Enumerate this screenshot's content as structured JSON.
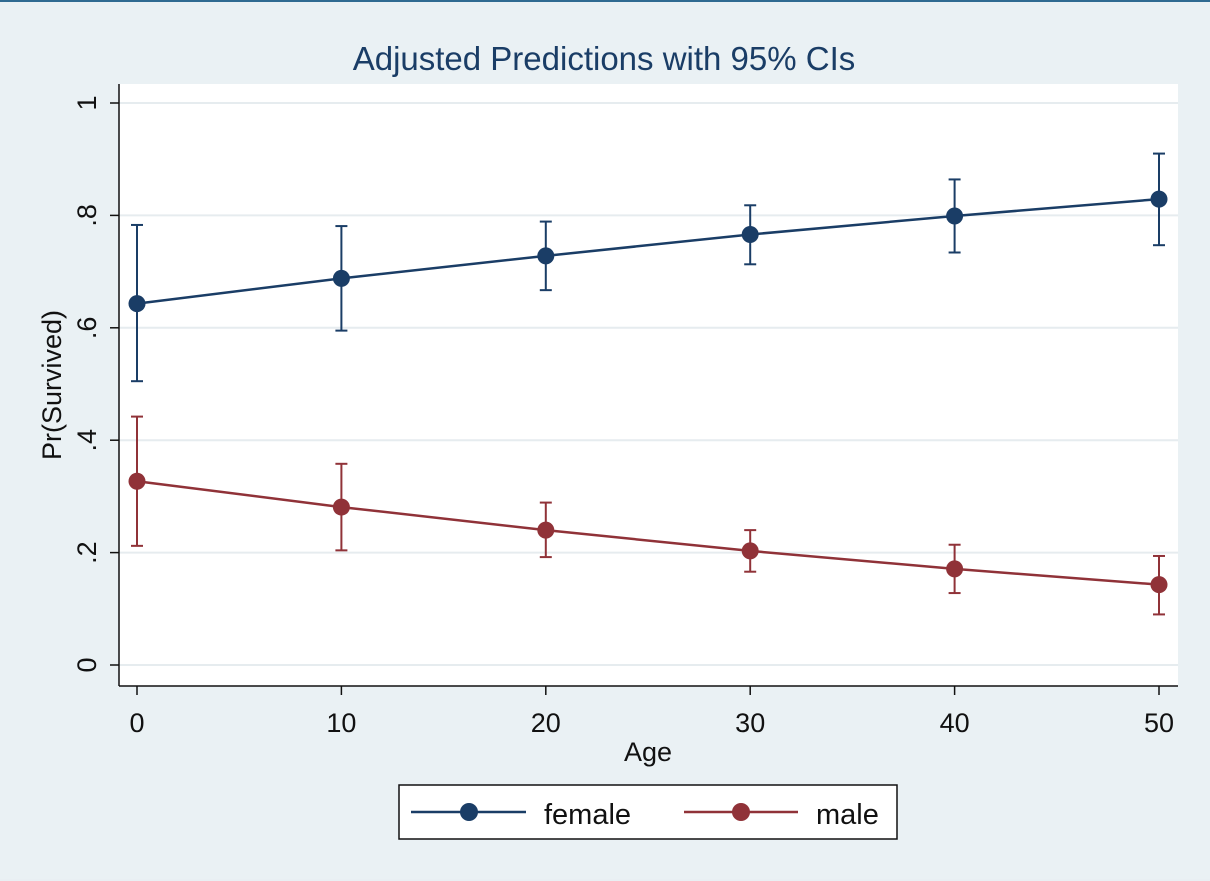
{
  "chart_data": {
    "type": "line",
    "title": "Adjusted Predictions with 95% CIs",
    "xlabel": "Age",
    "ylabel": "Pr(Survived)",
    "x": [
      0,
      10,
      20,
      30,
      40,
      50
    ],
    "xticks": [
      "0",
      "10",
      "20",
      "30",
      "40",
      "50"
    ],
    "xlim": [
      0,
      50
    ],
    "yticks": [
      "0",
      ".2",
      ".4",
      ".6",
      ".8",
      "1"
    ],
    "ytick_values": [
      0,
      0.2,
      0.4,
      0.6,
      0.8,
      1.0
    ],
    "ylim": [
      0,
      1
    ],
    "grid": true,
    "legend_position": "bottom",
    "series": [
      {
        "name": "female",
        "color": "#1a3d66",
        "values": [
          0.643,
          0.688,
          0.728,
          0.766,
          0.799,
          0.829
        ],
        "ci_lower": [
          0.505,
          0.595,
          0.667,
          0.713,
          0.734,
          0.747
        ],
        "ci_upper": [
          0.783,
          0.781,
          0.789,
          0.818,
          0.864,
          0.91
        ]
      },
      {
        "name": "male",
        "color": "#903238",
        "values": [
          0.327,
          0.281,
          0.24,
          0.203,
          0.171,
          0.143
        ],
        "ci_lower": [
          0.212,
          0.204,
          0.192,
          0.166,
          0.128,
          0.09
        ],
        "ci_upper": [
          0.442,
          0.358,
          0.289,
          0.24,
          0.214,
          0.194
        ]
      }
    ]
  }
}
